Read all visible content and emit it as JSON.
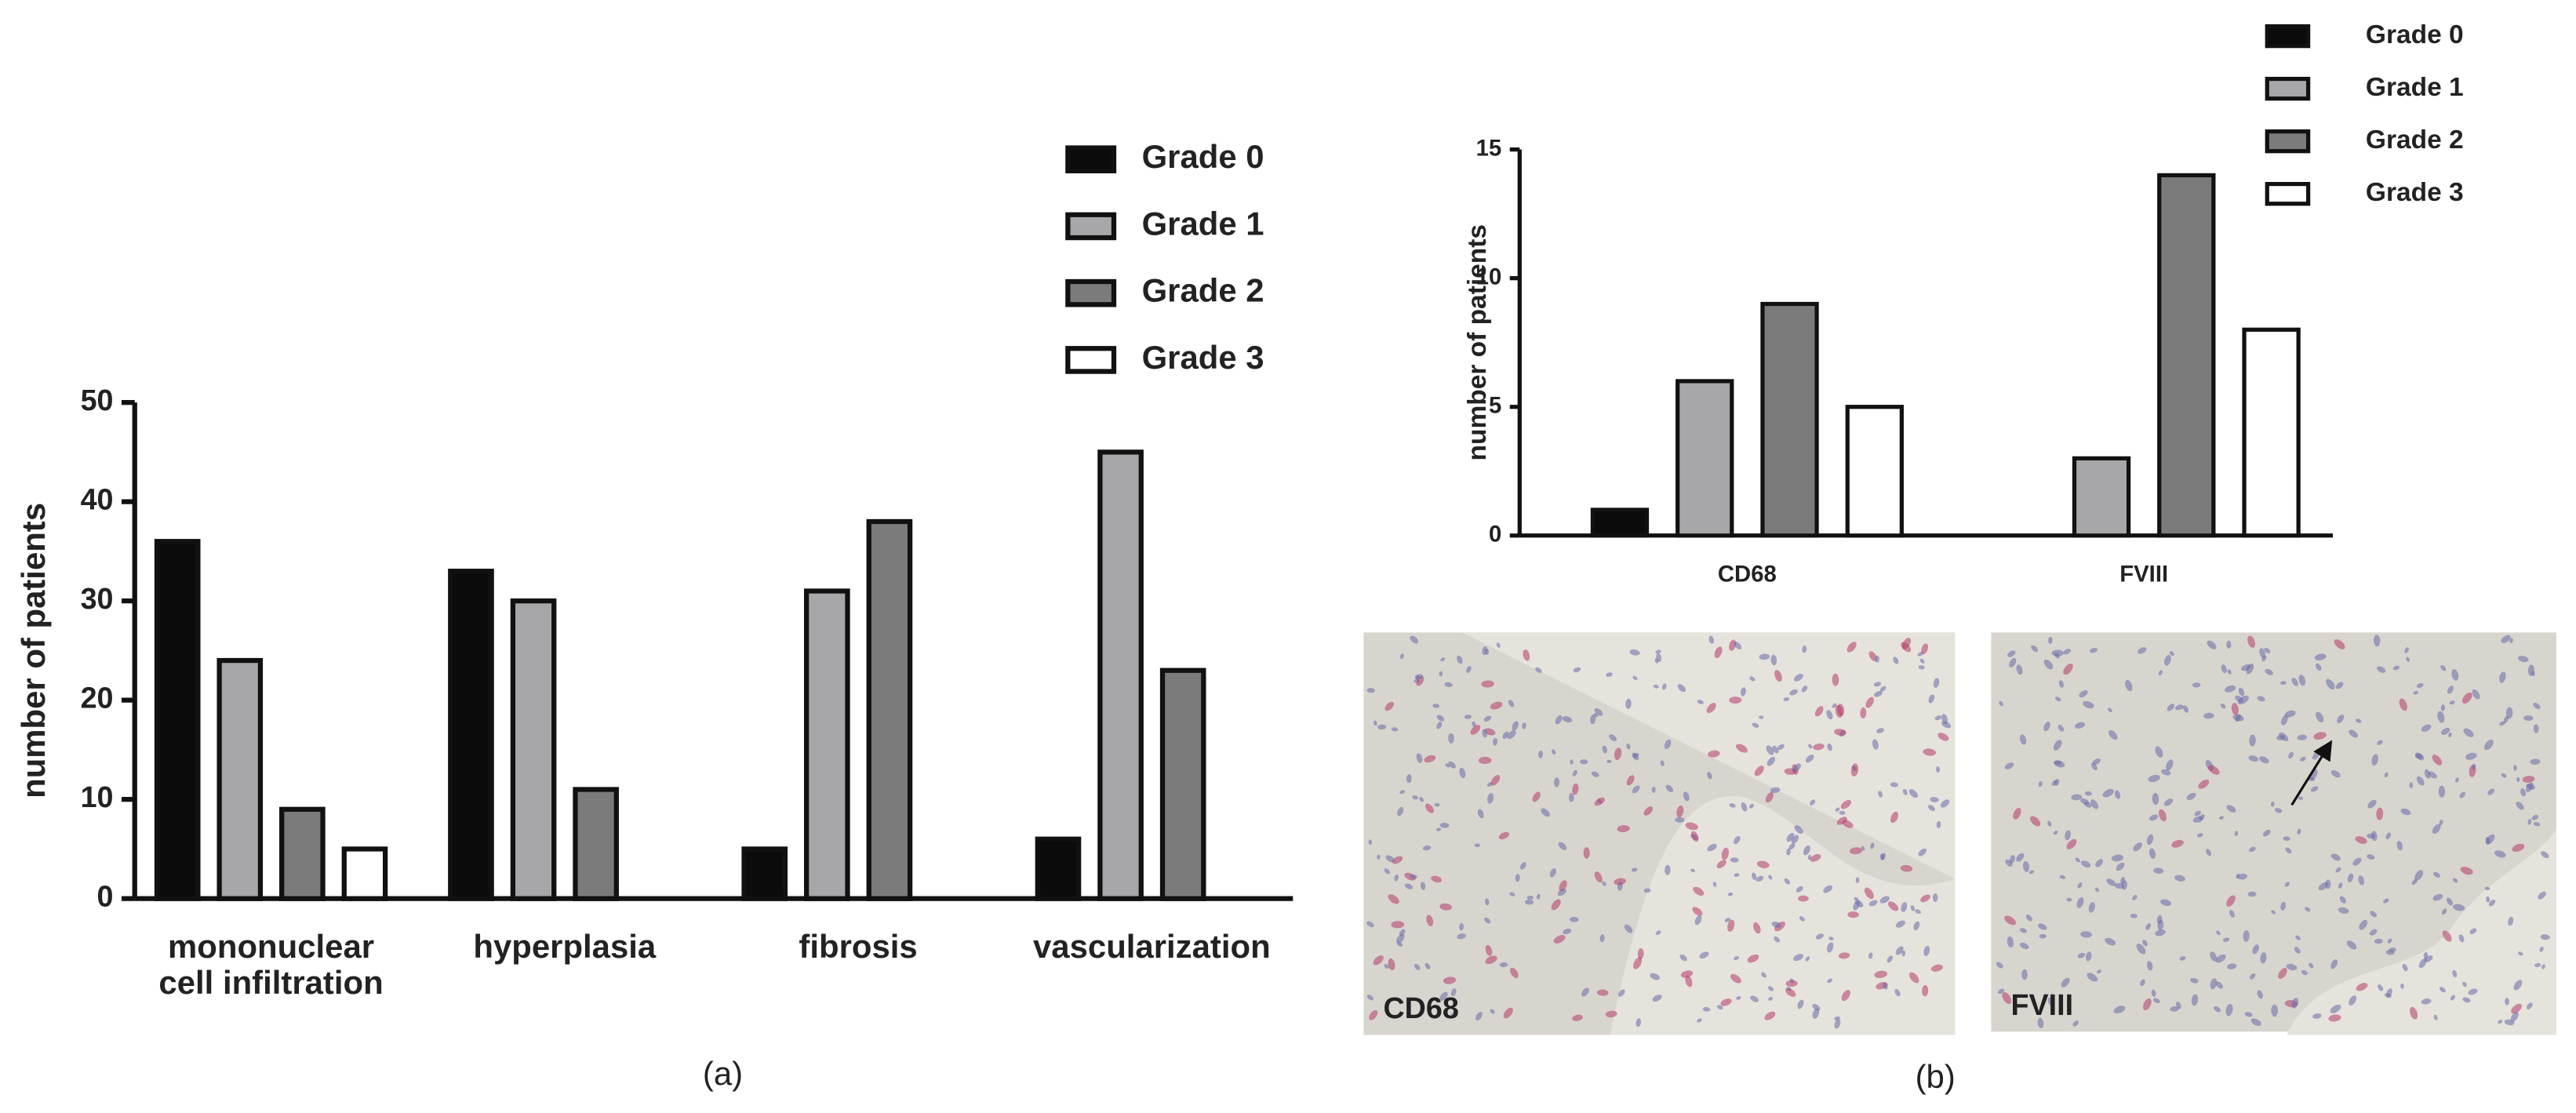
{
  "chart_data": [
    {
      "type": "bar",
      "caption": "(a)",
      "y_label": "number of patients",
      "categories": [
        "mononuclear cell infiltration",
        "hyperplasia",
        "fibrosis",
        "vascularization"
      ],
      "series": [
        {
          "name": "Grade 0",
          "color": "#0b0b0b",
          "values": [
            36,
            33,
            5,
            6
          ]
        },
        {
          "name": "Grade 1",
          "color": "#a7a7a9",
          "values": [
            24,
            30,
            31,
            45
          ]
        },
        {
          "name": "Grade 2",
          "color": "#7b7b7b",
          "values": [
            9,
            11,
            38,
            23
          ]
        },
        {
          "name": "Grade 3",
          "color": "#ffffff",
          "values": [
            5,
            0,
            0,
            0
          ]
        }
      ],
      "ylim": [
        0,
        50
      ],
      "yticks": [
        0,
        10,
        20,
        30,
        40,
        50
      ],
      "grid": false
    },
    {
      "type": "bar",
      "caption": "(b)",
      "y_label": "number of patients",
      "categories": [
        "CD68",
        "FVIII"
      ],
      "series": [
        {
          "name": "Grade 0",
          "color": "#0b0b0b",
          "values": [
            1,
            0
          ]
        },
        {
          "name": "Grade 1",
          "color": "#a7a7a9",
          "values": [
            6,
            3
          ]
        },
        {
          "name": "Grade 2",
          "color": "#7b7b7b",
          "values": [
            9,
            14
          ]
        },
        {
          "name": "Grade 3",
          "color": "#ffffff",
          "values": [
            5,
            8
          ]
        }
      ],
      "ylim": [
        0,
        15
      ],
      "yticks": [
        0,
        5,
        10,
        15
      ],
      "grid": false
    }
  ],
  "images": [
    {
      "label": "CD68"
    },
    {
      "label": "FVIII"
    }
  ]
}
